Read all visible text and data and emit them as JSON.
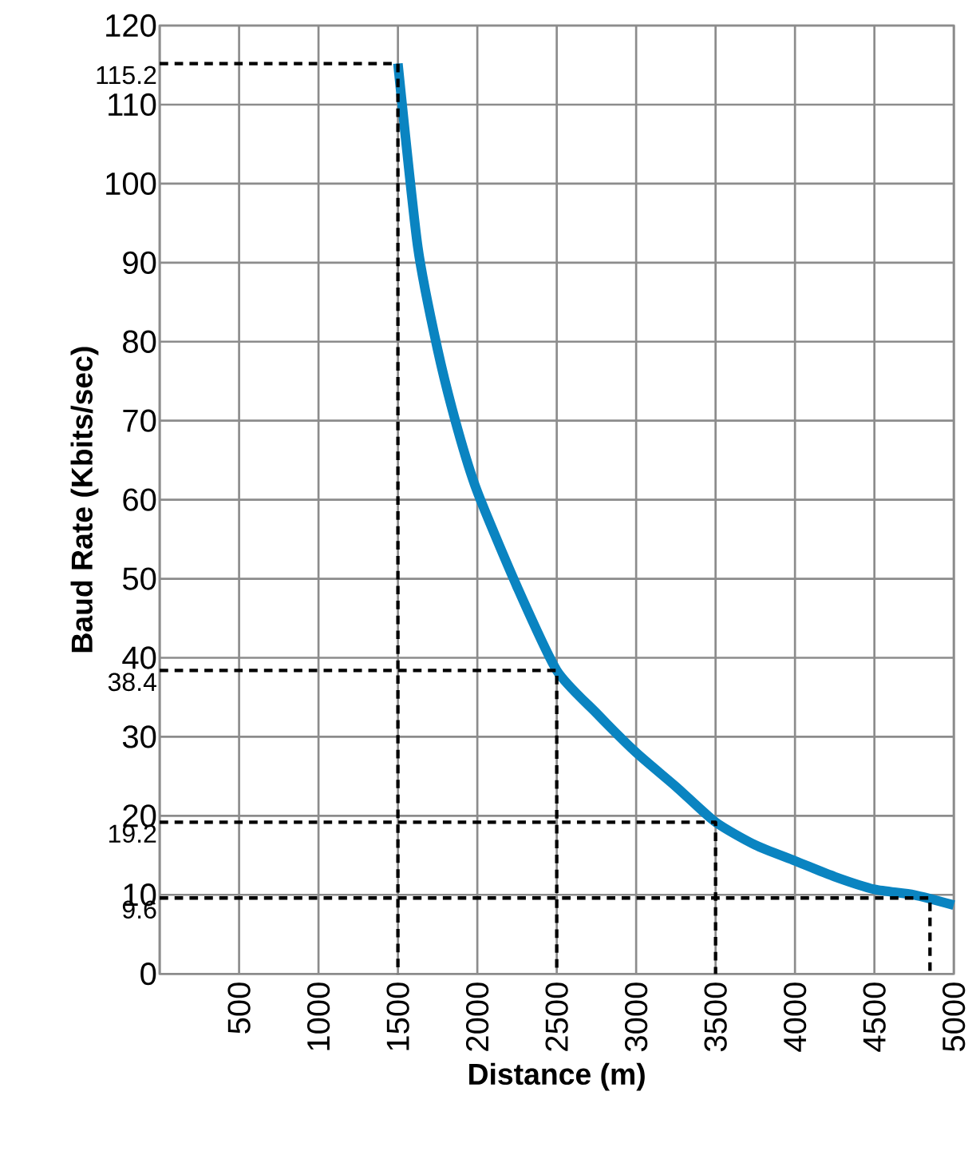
{
  "chart_data": {
    "type": "line",
    "xlabel": "Distance (m)",
    "ylabel": "Baud Rate (Kbits/sec)",
    "xlim": [
      0,
      5000
    ],
    "ylim": [
      0,
      120
    ],
    "xticks": [
      {
        "value": 0,
        "label": null
      },
      500,
      1000,
      1500,
      2000,
      2500,
      3000,
      3500,
      4000,
      4500,
      5000
    ],
    "yticks": [
      0,
      10,
      20,
      30,
      40,
      50,
      60,
      70,
      80,
      90,
      100,
      110,
      120
    ],
    "grid": true,
    "series": [
      {
        "color": "#0a84c1",
        "line_style": "solid",
        "x": [
          1500,
          1625,
          1750,
          1875,
          2000,
          2250,
          2500,
          2750,
          3000,
          3250,
          3500,
          3750,
          4000,
          4250,
          4500,
          4750,
          5000
        ],
        "values": [
          115.2,
          92,
          79,
          69,
          61,
          49,
          38.4,
          33,
          28,
          23.7,
          19.2,
          16.3,
          14.3,
          12.3,
          10.7,
          10,
          8.7
        ]
      },
      {
        "color": "#000000",
        "line_style": "dashed",
        "x": [
          0,
          1500,
          1500
        ],
        "values": [
          115.2,
          115.2,
          0
        ]
      },
      {
        "color": "#000000",
        "line_style": "dashed",
        "x": [
          0,
          2500,
          2500
        ],
        "values": [
          38.4,
          38.4,
          0
        ]
      },
      {
        "color": "#000000",
        "line_style": "dashed",
        "x": [
          0,
          3500,
          3500
        ],
        "values": [
          19.2,
          19.2,
          0
        ]
      },
      {
        "color": "#000000",
        "line_style": "dashed",
        "x": [
          0,
          4850,
          4850
        ],
        "values": [
          9.6,
          9.6,
          0
        ]
      }
    ],
    "annotations": [
      "115.2",
      "38.4",
      "19.2",
      "9.6"
    ]
  }
}
